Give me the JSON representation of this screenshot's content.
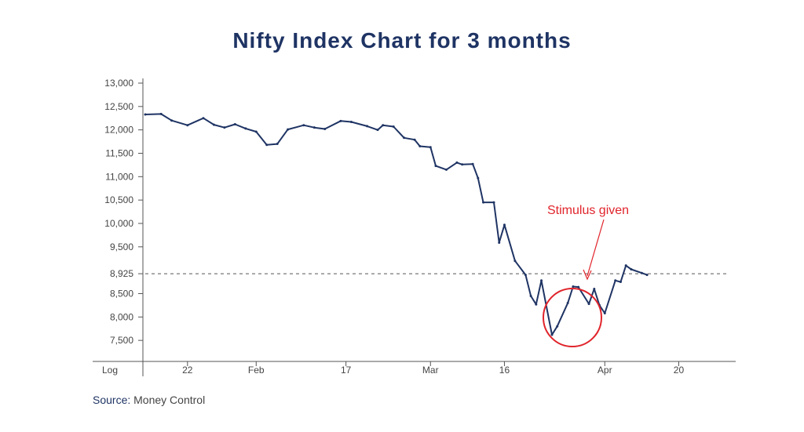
{
  "chart_data": {
    "type": "line",
    "title": "Nifty Index Chart for 3 months",
    "yscale_label": "Log",
    "ylim": [
      7100,
      13000
    ],
    "yticks": [
      7500,
      8000,
      8500,
      8925,
      9500,
      10000,
      10500,
      11000,
      11500,
      12000,
      12500,
      13000
    ],
    "ytick_labels": [
      "7,500",
      "8,000",
      "8,500",
      "8,925",
      "9,500",
      "10,000",
      "10,500",
      "11,000",
      "11,500",
      "12,000",
      "12,500",
      "13,000"
    ],
    "xlim": [
      0,
      110
    ],
    "xticks": [
      8,
      21,
      38,
      54,
      68,
      87,
      101
    ],
    "xtick_labels": [
      "22",
      "Feb",
      "17",
      "Mar",
      "16",
      "Apr",
      "20"
    ],
    "series": [
      {
        "x": [
          0,
          3,
          5,
          8,
          11,
          13,
          15,
          17,
          19,
          21,
          23,
          25,
          27,
          30,
          32,
          34,
          37,
          39,
          42,
          44,
          45,
          47,
          49,
          51,
          52,
          54,
          55,
          57,
          59,
          60,
          62,
          63,
          64,
          66,
          67,
          68,
          70,
          72,
          73,
          74,
          75,
          77,
          78,
          80,
          81,
          82,
          84,
          85,
          86,
          87,
          89,
          90,
          91,
          92,
          94,
          95
        ],
        "values": [
          12330,
          12340,
          12200,
          12100,
          12250,
          12110,
          12050,
          12120,
          12030,
          11960,
          11680,
          11700,
          12010,
          12100,
          12050,
          12020,
          12190,
          12170,
          12080,
          12000,
          12100,
          12070,
          11830,
          11790,
          11650,
          11630,
          11230,
          11150,
          11300,
          11260,
          11270,
          10970,
          10450,
          10450,
          9590,
          9970,
          9200,
          8900,
          8450,
          8270,
          8780,
          7620,
          7800,
          8300,
          8650,
          8640,
          8280,
          8600,
          8250,
          8080,
          8780,
          8750,
          9100,
          9020,
          8940,
          8900
        ]
      }
    ],
    "reference_line": {
      "y": 8925,
      "style": "dashed"
    },
    "annotation": {
      "text": "Stimulus given",
      "color": "#e0242b"
    },
    "highlight_circle": {
      "color": "#e0242b"
    },
    "line_color": "#1f3464",
    "grid": false
  },
  "source": {
    "label": "Source:",
    "value": "Money Control"
  }
}
